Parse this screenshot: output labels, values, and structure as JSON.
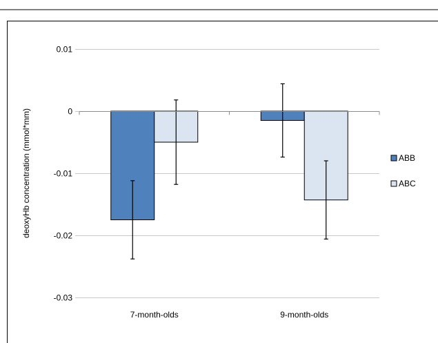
{
  "chart_data": {
    "type": "bar",
    "title": "",
    "xlabel": "",
    "ylabel": "deoxyHb concentration (mmol*mm)",
    "categories": [
      "7-month-olds",
      "9-month-olds"
    ],
    "ylim": [
      -0.03,
      0.01
    ],
    "yticks": [
      0.01,
      0,
      -0.01,
      -0.02,
      -0.03
    ],
    "ytick_labels": [
      "0.01",
      "0",
      "-0.01",
      "-0.02",
      "-0.03"
    ],
    "grid": true,
    "legend_position": "right",
    "series": [
      {
        "name": "ABB",
        "color": "#4f81bd",
        "values": [
          -0.0175,
          -0.0015
        ],
        "error": [
          0.0063,
          0.0059
        ]
      },
      {
        "name": "ABC",
        "color": "#dbe5f1",
        "values": [
          -0.005,
          -0.0143
        ],
        "error": [
          0.0068,
          0.0063
        ]
      }
    ]
  }
}
